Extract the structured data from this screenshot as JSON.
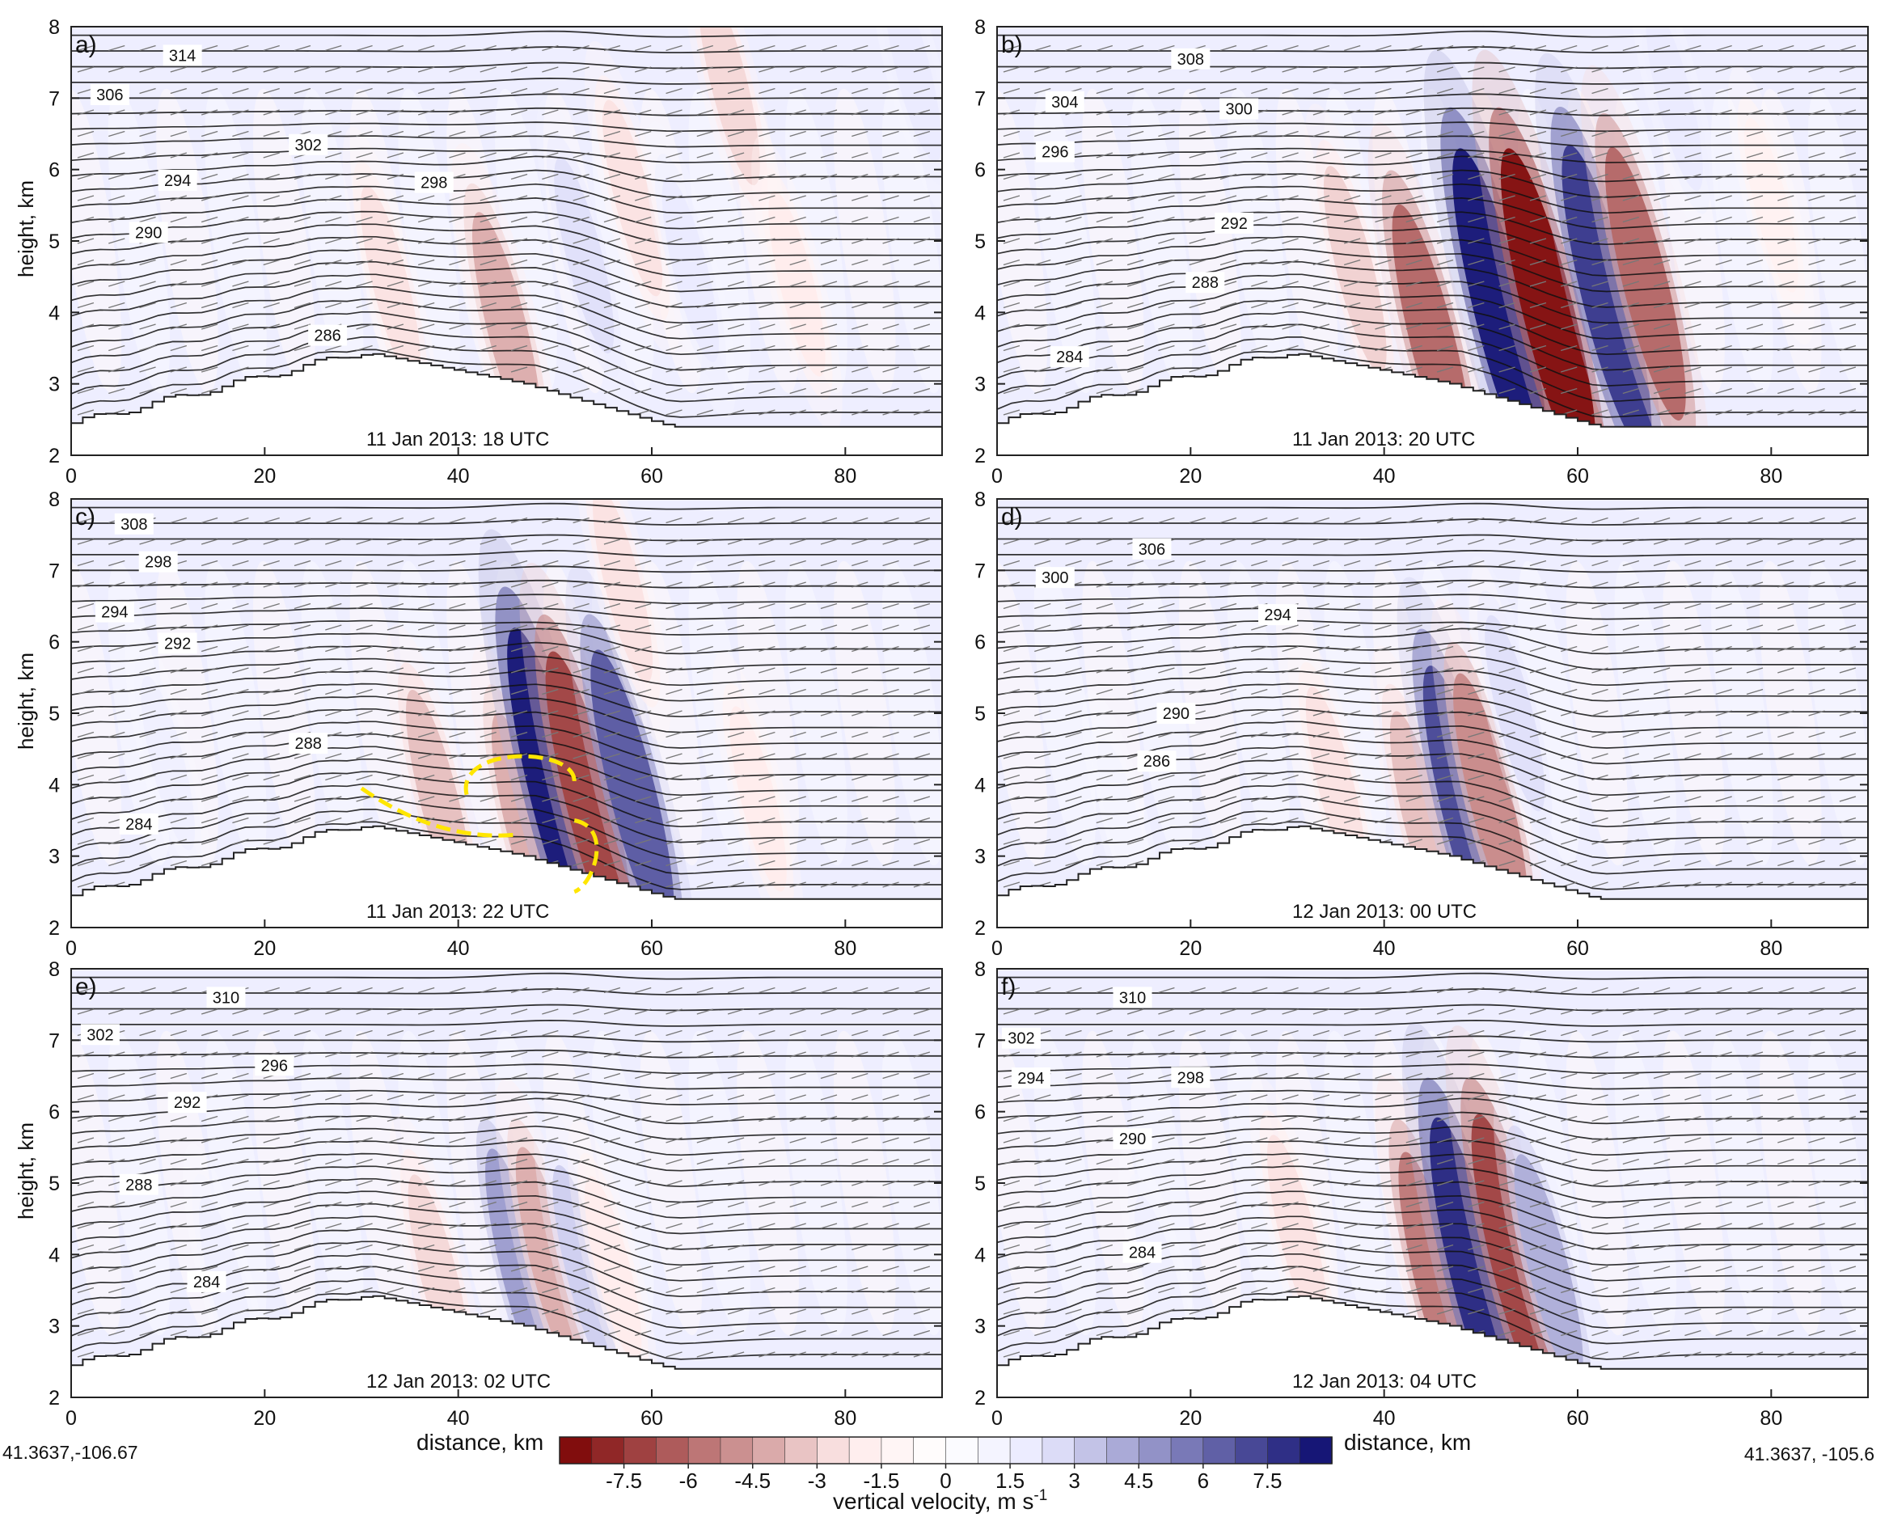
{
  "chart_data": {
    "type": "heatmap",
    "description_variable": "vertical velocity",
    "x_range": [
      0,
      90
    ],
    "y_range": [
      2,
      8
    ],
    "y_label": "height, km",
    "x_label": "distance, km",
    "x_ticks": [
      "0",
      "20",
      "40",
      "60",
      "80"
    ],
    "y_ticks": [
      "2",
      "3",
      "4",
      "5",
      "6",
      "7",
      "8"
    ],
    "colorbar": {
      "title": "vertical velocity, m s",
      "title_superscript": "-1",
      "min": -9,
      "max": 9,
      "step": 0.75,
      "tick_labels": [
        "-7.5",
        "-6",
        "-4.5",
        "-3",
        "-1.5",
        "0",
        "1.5",
        "3",
        "4.5",
        "6",
        "7.5"
      ],
      "tick_values": [
        -7.5,
        -6,
        -4.5,
        -3,
        -1.5,
        0,
        1.5,
        3,
        4.5,
        6,
        7.5
      ],
      "negative_color": "#7a0000",
      "mid_color": "#ffffff",
      "positive_color": "#0a0a6e"
    },
    "left_endpoint": "41.3637,-106.67",
    "right_endpoint": "41.3637, -105.6",
    "terrain_peak": {
      "x_km": 30,
      "height_km": 3.45
    },
    "panels": [
      {
        "letter": "a)",
        "timestamp": "11 Jan 2013: 18 UTC",
        "contour_labels": [
          {
            "text": "314",
            "x": 11.5,
            "y": 7.6
          },
          {
            "text": "306",
            "x": 4,
            "y": 7.05
          },
          {
            "text": "302",
            "x": 24.5,
            "y": 6.35
          },
          {
            "text": "294",
            "x": 11,
            "y": 5.85
          },
          {
            "text": "298",
            "x": 37.5,
            "y": 5.82
          },
          {
            "text": "290",
            "x": 8,
            "y": 5.12
          },
          {
            "text": "286",
            "x": 26.5,
            "y": 3.68
          }
        ],
        "w_cells": [
          {
            "x": 33,
            "y": 4.4,
            "w": -2.5
          },
          {
            "x": 45,
            "y": 3.8,
            "w": -4.0
          },
          {
            "x": 53,
            "y": 4.8,
            "w": 2.5
          },
          {
            "x": 58,
            "y": 5.6,
            "w": -2.5
          },
          {
            "x": 64,
            "y": 4.6,
            "w": 2.0
          },
          {
            "x": 68,
            "y": 7.2,
            "w": -2.8
          },
          {
            "x": 75,
            "y": 4.4,
            "w": -2.0
          },
          {
            "x": 87,
            "y": 7.4,
            "w": 2.0
          }
        ]
      },
      {
        "letter": "b)",
        "timestamp": "11 Jan 2013: 20 UTC",
        "contour_labels": [
          {
            "text": "308",
            "x": 20,
            "y": 7.55
          },
          {
            "text": "304",
            "x": 7,
            "y": 6.95
          },
          {
            "text": "300",
            "x": 25,
            "y": 6.85
          },
          {
            "text": "296",
            "x": 6,
            "y": 6.25
          },
          {
            "text": "292",
            "x": 24.5,
            "y": 5.25
          },
          {
            "text": "288",
            "x": 21.5,
            "y": 4.42
          },
          {
            "text": "284",
            "x": 7.5,
            "y": 3.38
          }
        ],
        "w_cells": [
          {
            "x": 37,
            "y": 4.6,
            "w": -3.0
          },
          {
            "x": 45,
            "y": 3.6,
            "w": -6.0
          },
          {
            "x": 52,
            "y": 4.0,
            "w": 8.5
          },
          {
            "x": 57,
            "y": 4.0,
            "w": -8.5
          },
          {
            "x": 63,
            "y": 4.2,
            "w": 7.5
          },
          {
            "x": 67,
            "y": 4.4,
            "w": -6.0
          },
          {
            "x": 70,
            "y": 7.0,
            "w": 2.0
          },
          {
            "x": 80,
            "y": 5.5,
            "w": -1.5
          }
        ]
      },
      {
        "letter": "c)",
        "timestamp": "11 Jan 2013: 22 UTC",
        "contour_labels": [
          {
            "text": "308",
            "x": 6.5,
            "y": 7.65
          },
          {
            "text": "298",
            "x": 9,
            "y": 7.12
          },
          {
            "text": "294",
            "x": 4.5,
            "y": 6.42
          },
          {
            "text": "292",
            "x": 11,
            "y": 5.98
          },
          {
            "text": "288",
            "x": 24.5,
            "y": 4.58
          },
          {
            "text": "284",
            "x": 7,
            "y": 3.45
          }
        ],
        "w_cells": [
          {
            "x": 38,
            "y": 3.8,
            "w": -3.5
          },
          {
            "x": 47,
            "y": 3.4,
            "w": -4.0
          },
          {
            "x": 50,
            "y": 3.9,
            "w": 8.5
          },
          {
            "x": 53.5,
            "y": 3.8,
            "w": -7.0
          },
          {
            "x": 58,
            "y": 3.9,
            "w": 6.5
          },
          {
            "x": 57,
            "y": 6.8,
            "w": -2.5
          },
          {
            "x": 71,
            "y": 3.8,
            "w": -2.0
          },
          {
            "x": 10,
            "y": 4.3,
            "w": 1.5
          }
        ]
      },
      {
        "letter": "d)",
        "timestamp": "12 Jan 2013: 00 UTC",
        "contour_labels": [
          {
            "text": "306",
            "x": 16,
            "y": 7.3
          },
          {
            "text": "300",
            "x": 6,
            "y": 6.9
          },
          {
            "text": "294",
            "x": 29,
            "y": 6.38
          },
          {
            "text": "290",
            "x": 18.5,
            "y": 5.0
          },
          {
            "text": "286",
            "x": 16.5,
            "y": 4.33
          }
        ],
        "w_cells": [
          {
            "x": 35,
            "y": 4.0,
            "w": -2.5
          },
          {
            "x": 44,
            "y": 3.5,
            "w": -3.5
          },
          {
            "x": 48.5,
            "y": 3.6,
            "w": 7.0
          },
          {
            "x": 51,
            "y": 3.8,
            "w": -5.0
          },
          {
            "x": 53.5,
            "y": 5.0,
            "w": 2.5
          },
          {
            "x": 13,
            "y": 3.5,
            "w": 1.0
          }
        ]
      },
      {
        "letter": "e)",
        "timestamp": "12 Jan 2013: 02 UTC",
        "contour_labels": [
          {
            "text": "310",
            "x": 16,
            "y": 7.6
          },
          {
            "text": "302",
            "x": 3,
            "y": 7.08
          },
          {
            "text": "296",
            "x": 21,
            "y": 6.65
          },
          {
            "text": "292",
            "x": 12,
            "y": 6.13
          },
          {
            "text": "288",
            "x": 7,
            "y": 4.98
          },
          {
            "text": "284",
            "x": 14,
            "y": 3.62
          }
        ],
        "w_cells": [
          {
            "x": 38,
            "y": 3.7,
            "w": -2.8
          },
          {
            "x": 46.5,
            "y": 3.8,
            "w": 4.5
          },
          {
            "x": 49.5,
            "y": 3.9,
            "w": -4.0
          },
          {
            "x": 53,
            "y": 3.8,
            "w": 3.0
          },
          {
            "x": 56,
            "y": 3.8,
            "w": -2.0
          },
          {
            "x": 16,
            "y": 3.6,
            "w": 1.5
          }
        ]
      },
      {
        "letter": "f)",
        "timestamp": "12 Jan 2013: 04 UTC",
        "contour_labels": [
          {
            "text": "310",
            "x": 14,
            "y": 7.6
          },
          {
            "text": "302",
            "x": 2.5,
            "y": 7.03
          },
          {
            "text": "298",
            "x": 20,
            "y": 6.48
          },
          {
            "text": "294",
            "x": 3.5,
            "y": 6.47
          },
          {
            "text": "290",
            "x": 14,
            "y": 5.62
          },
          {
            "text": "284",
            "x": 15,
            "y": 4.03
          }
        ],
        "w_cells": [
          {
            "x": 31,
            "y": 4.3,
            "w": -2.5
          },
          {
            "x": 45.5,
            "y": 3.6,
            "w": -5.5
          },
          {
            "x": 49.5,
            "y": 3.7,
            "w": 8.0
          },
          {
            "x": 53.5,
            "y": 3.9,
            "w": -7.0
          },
          {
            "x": 57,
            "y": 3.8,
            "w": 4.0
          },
          {
            "x": 17,
            "y": 3.6,
            "w": 1.5
          }
        ]
      }
    ]
  }
}
